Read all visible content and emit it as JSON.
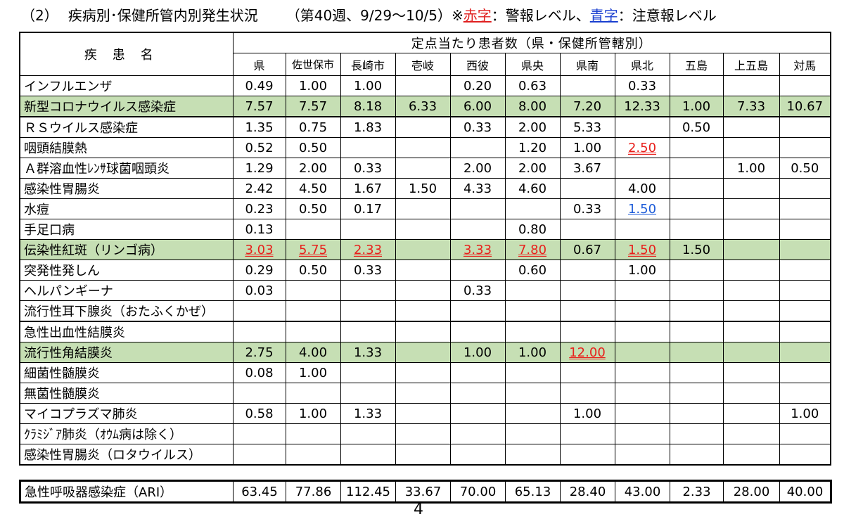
{
  "title": {
    "section": "（2）",
    "heading": "疾病別･保健所管内別発生状況",
    "period": "（第40週、9/29～10/5）※",
    "red_label": "赤字",
    "red_desc": "：警報レベル、",
    "blue_label": "青字",
    "blue_desc": "：注意報レベル"
  },
  "colors": {
    "alarm": "#e8201c",
    "caution": "#1c5bd8",
    "highlight": "#c6dfb4"
  },
  "header": {
    "disease_col": "疾患名",
    "group": "定点当たり患者数（県・保健所管轄別）",
    "columns": [
      "県",
      "佐世保市",
      "長崎市",
      "壱岐",
      "西彼",
      "県央",
      "県南",
      "県北",
      "五島",
      "上五島",
      "対馬"
    ]
  },
  "rows": [
    {
      "name": "インフルエンザ",
      "values": [
        "0.49",
        "1.00",
        "1.00",
        "",
        "0.20",
        "0.63",
        "",
        "0.33",
        "",
        "",
        ""
      ]
    },
    {
      "name": "新型コロナウイルス感染症",
      "values": [
        "7.57",
        "7.57",
        "8.18",
        "6.33",
        "6.00",
        "8.00",
        "7.20",
        "12.33",
        "1.00",
        "7.33",
        "10.67"
      ]
    },
    {
      "name": "ＲＳウイルス感染症",
      "values": [
        "1.35",
        "0.75",
        "1.83",
        "",
        "0.33",
        "2.00",
        "5.33",
        "",
        "0.50",
        "",
        ""
      ]
    },
    {
      "name": "咽頭結膜熱",
      "values": [
        "0.52",
        "0.50",
        "",
        "",
        "",
        "1.20",
        "1.00",
        "2.50",
        "",
        "",
        ""
      ]
    },
    {
      "name": "Ａ群溶血性ﾚﾝｻ球菌咽頭炎",
      "values": [
        "1.29",
        "2.00",
        "0.33",
        "",
        "2.00",
        "2.00",
        "3.67",
        "",
        "",
        "1.00",
        "0.50"
      ]
    },
    {
      "name": "感染性胃腸炎",
      "values": [
        "2.42",
        "4.50",
        "1.67",
        "1.50",
        "4.33",
        "4.60",
        "",
        "4.00",
        "",
        "",
        ""
      ]
    },
    {
      "name": "水痘",
      "values": [
        "0.23",
        "0.50",
        "0.17",
        "",
        "",
        "",
        "0.33",
        "1.50",
        "",
        "",
        ""
      ]
    },
    {
      "name": "手足口病",
      "values": [
        "0.13",
        "",
        "",
        "",
        "",
        "0.80",
        "",
        "",
        "",
        "",
        ""
      ]
    },
    {
      "name": "伝染性紅斑（リンゴ病）",
      "values": [
        "3.03",
        "5.75",
        "2.33",
        "",
        "3.33",
        "7.80",
        "0.67",
        "1.50",
        "1.50",
        "",
        ""
      ]
    },
    {
      "name": "突発性発しん",
      "values": [
        "0.29",
        "0.50",
        "0.33",
        "",
        "",
        "0.60",
        "",
        "1.00",
        "",
        "",
        ""
      ]
    },
    {
      "name": "ヘルパンギーナ",
      "values": [
        "0.03",
        "",
        "",
        "",
        "0.33",
        "",
        "",
        "",
        "",
        "",
        ""
      ]
    },
    {
      "name": "流行性耳下腺炎（おたふくかぜ）",
      "values": [
        "",
        "",
        "",
        "",
        "",
        "",
        "",
        "",
        "",
        "",
        ""
      ]
    },
    {
      "name": "急性出血性結膜炎",
      "values": [
        "",
        "",
        "",
        "",
        "",
        "",
        "",
        "",
        "",
        "",
        ""
      ]
    },
    {
      "name": "流行性角結膜炎",
      "values": [
        "2.75",
        "4.00",
        "1.33",
        "",
        "1.00",
        "1.00",
        "12.00",
        "",
        "",
        "",
        ""
      ]
    },
    {
      "name": "細菌性髄膜炎",
      "values": [
        "0.08",
        "1.00",
        "",
        "",
        "",
        "",
        "",
        "",
        "",
        "",
        ""
      ]
    },
    {
      "name": "無菌性髄膜炎",
      "values": [
        "",
        "",
        "",
        "",
        "",
        "",
        "",
        "",
        "",
        "",
        ""
      ]
    },
    {
      "name": "マイコプラズマ肺炎",
      "values": [
        "0.58",
        "1.00",
        "1.33",
        "",
        "",
        "",
        "1.00",
        "",
        "",
        "",
        "1.00"
      ]
    },
    {
      "name": "ｸﾗﾐｼﾞｱ肺炎（ｵｳﾑ病は除く）",
      "values": [
        "",
        "",
        "",
        "",
        "",
        "",
        "",
        "",
        "",
        "",
        ""
      ]
    },
    {
      "name": "感染性胃腸炎（ロタウイルス）",
      "values": [
        "",
        "",
        "",
        "",
        "",
        "",
        "",
        "",
        "",
        "",
        ""
      ]
    }
  ],
  "ari": {
    "name": "急性呼吸器感染症（ARI）",
    "values": [
      "63.45",
      "77.86",
      "112.45",
      "33.67",
      "70.00",
      "65.13",
      "28.40",
      "43.00",
      "2.33",
      "28.00",
      "40.00"
    ]
  },
  "page_number": "4"
}
